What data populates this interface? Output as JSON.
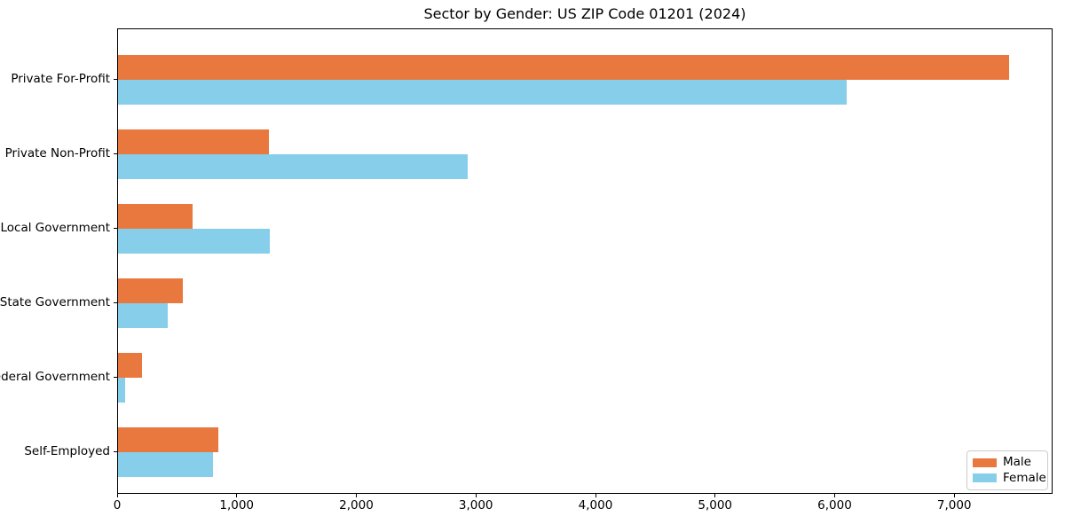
{
  "chart_data": {
    "type": "bar",
    "orientation": "horizontal",
    "title": "Sector by Gender: US ZIP Code 01201 (2024)",
    "categories": [
      "Private For-Profit",
      "Private Non-Profit",
      "Local Government",
      "State Government",
      "Federal Government",
      "Self-Employed"
    ],
    "series": [
      {
        "name": "Male",
        "color": "#E8783E",
        "values": [
          7450,
          1260,
          625,
          540,
          200,
          840
        ]
      },
      {
        "name": "Female",
        "color": "#87CEEB",
        "values": [
          6095,
          2925,
          1265,
          415,
          60,
          790
        ]
      }
    ],
    "xlabel": "",
    "ylabel": "",
    "xlim": [
      0,
      7822
    ],
    "xticks": [
      0,
      1000,
      2000,
      3000,
      4000,
      5000,
      6000,
      7000
    ],
    "xtick_labels": [
      "0",
      "1,000",
      "2,000",
      "3,000",
      "4,000",
      "5,000",
      "6,000",
      "7,000"
    ],
    "grid": false,
    "legend": {
      "position": "lower right",
      "entries": [
        "Male",
        "Female"
      ]
    }
  },
  "colors": {
    "background": "#ffffff",
    "axis": "#000000",
    "legend_border": "#cccccc",
    "male": "#E8783E",
    "female": "#87CEEB"
  }
}
